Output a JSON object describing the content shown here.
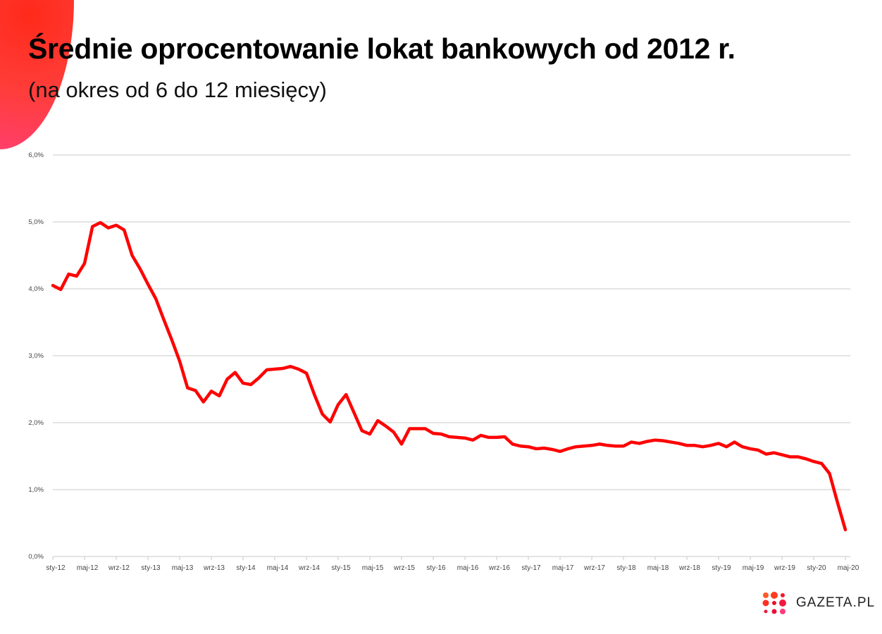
{
  "title": "Średnie oprocentowanie lokat bankowych od 2012 r.",
  "subtitle": "(na okres od 6 do 12 miesięcy)",
  "logo": "GAZETA.PL",
  "colors": {
    "line": "#ff0000",
    "grid": "#c8c8c8"
  },
  "chart_data": {
    "type": "line",
    "title": "Średnie oprocentowanie lokat bankowych od 2012 r.",
    "subtitle": "(na okres od 6 do 12 miesięcy)",
    "x_start": "sty-12",
    "x_end": "maj-20",
    "x_step": "month",
    "xticks": [
      "sty-12",
      "maj-12",
      "wrz-12",
      "sty-13",
      "maj-13",
      "wrz-13",
      "sty-14",
      "maj-14",
      "wrz-14",
      "sty-15",
      "maj-15",
      "wrz-15",
      "sty-16",
      "maj-16",
      "wrz-16",
      "sty-17",
      "maj-17",
      "wrz-17",
      "sty-18",
      "maj-18",
      "wrz-18",
      "sty-19",
      "maj-19",
      "wrz-19",
      "sty-20",
      "maj-20"
    ],
    "yticks": [
      "0,0%",
      "1,0%",
      "2,0%",
      "3,0%",
      "4,0%",
      "5,0%",
      "6,0%"
    ],
    "ylim": [
      0,
      6
    ],
    "grid": true,
    "series": [
      {
        "values": [
          4.05,
          3.99,
          4.22,
          4.19,
          4.38,
          4.93,
          4.99,
          4.91,
          4.95,
          4.88,
          4.5,
          4.3,
          4.07,
          3.85,
          3.54,
          3.24,
          2.92,
          2.52,
          2.48,
          2.31,
          2.47,
          2.4,
          2.65,
          2.75,
          2.59,
          2.57,
          2.67,
          2.79,
          2.8,
          2.81,
          2.84,
          2.8,
          2.74,
          2.42,
          2.13,
          2.01,
          2.27,
          2.42,
          2.15,
          1.88,
          1.83,
          2.03,
          1.95,
          1.86,
          1.68,
          1.91,
          1.91,
          1.91,
          1.84,
          1.83,
          1.79,
          1.78,
          1.77,
          1.74,
          1.81,
          1.78,
          1.78,
          1.79,
          1.68,
          1.65,
          1.64,
          1.61,
          1.62,
          1.6,
          1.57,
          1.61,
          1.64,
          1.65,
          1.66,
          1.68,
          1.66,
          1.65,
          1.65,
          1.71,
          1.69,
          1.72,
          1.74,
          1.73,
          1.71,
          1.69,
          1.66,
          1.66,
          1.64,
          1.66,
          1.69,
          1.64,
          1.71,
          1.64,
          1.61,
          1.59,
          1.53,
          1.55,
          1.52,
          1.49,
          1.49,
          1.46,
          1.42,
          1.39,
          1.24,
          0.81,
          0.4
        ]
      }
    ]
  }
}
